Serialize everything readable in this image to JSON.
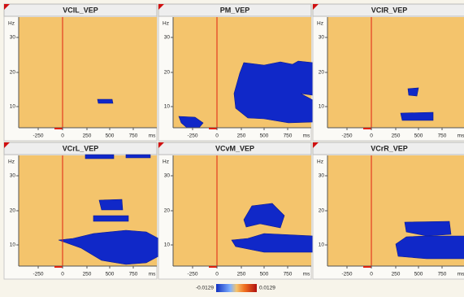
{
  "panels": [
    {
      "title": "VCIL_VEP"
    },
    {
      "title": "PM_VEP"
    },
    {
      "title": "VCIR_VEP"
    },
    {
      "title": "VCrL_VEP"
    },
    {
      "title": "VCvM_VEP"
    },
    {
      "title": "VCrR_VEP"
    }
  ],
  "axes": {
    "x_tick_labels": [
      "-250",
      "0",
      "250",
      "500",
      "750"
    ],
    "x_unit": "ms",
    "y_tick_labels": [
      "30",
      "20",
      "10"
    ],
    "y_unit": "Hz"
  },
  "colorbar": {
    "min_label": "-0.0129",
    "max_label": "0.0129"
  }
}
